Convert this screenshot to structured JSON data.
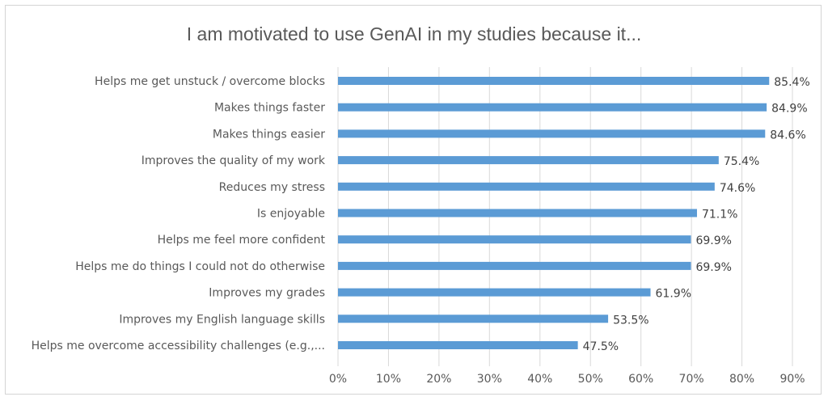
{
  "chart_data": {
    "type": "bar",
    "orientation": "horizontal",
    "title": "I am motivated to use GenAI in my studies because it...",
    "xlabel": "",
    "ylabel": "",
    "categories": [
      "Helps me get unstuck / overcome blocks",
      "Makes things faster",
      "Makes things easier",
      "Improves the quality of my work",
      "Reduces my stress",
      "Is enjoyable",
      "Helps me feel more confident",
      "Helps me do things I could not do otherwise",
      "Improves my grades",
      "Improves my English language skills",
      "Helps me overcome accessibility challenges (e.g.,..."
    ],
    "values": [
      85.4,
      84.9,
      84.6,
      75.4,
      74.6,
      71.1,
      69.9,
      69.9,
      61.9,
      53.5,
      47.5
    ],
    "value_labels": [
      "85.4%",
      "84.9%",
      "84.6%",
      "75.4%",
      "74.6%",
      "71.1%",
      "69.9%",
      "69.9%",
      "61.9%",
      "53.5%",
      "47.5%"
    ],
    "xlim": [
      0,
      90
    ],
    "x_ticks": [
      "0%",
      "10%",
      "20%",
      "30%",
      "40%",
      "50%",
      "60%",
      "70%",
      "80%",
      "90%"
    ],
    "grid": true,
    "legend": "none",
    "bar_color": "#5b9bd5"
  }
}
